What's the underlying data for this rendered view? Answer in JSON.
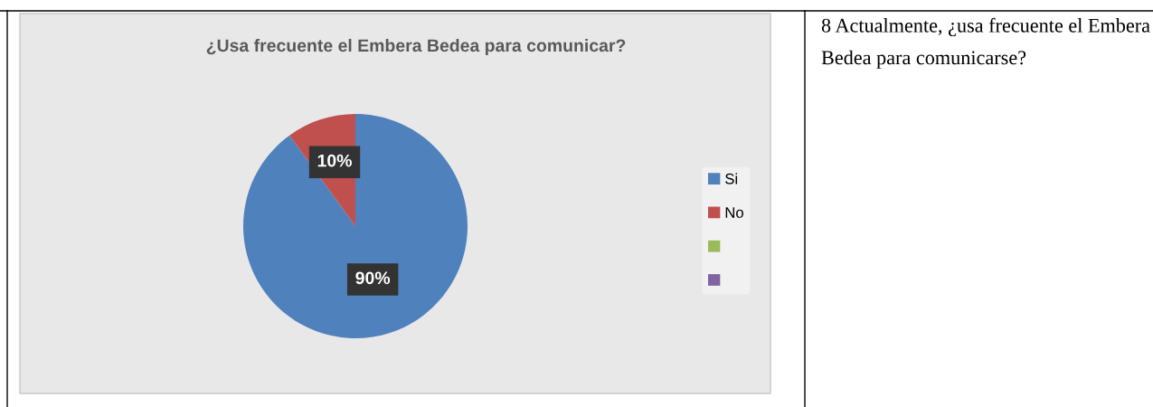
{
  "chart_data": {
    "type": "pie",
    "title": "¿Usa frecuente el Embera Bedea para comunicar?",
    "categories": [
      "Si",
      "No",
      null,
      null
    ],
    "values": [
      90,
      10,
      0,
      0
    ],
    "colors": [
      "#4f81bd",
      "#c0504d",
      "#9bbb59",
      "#8064a2"
    ],
    "value_labels": [
      "90%",
      "10%",
      null,
      null
    ],
    "legend": "right",
    "annotations": [
      "8 Actualmente, ¿usa frecuente el Embera Bedea para comunicarse?"
    ]
  }
}
